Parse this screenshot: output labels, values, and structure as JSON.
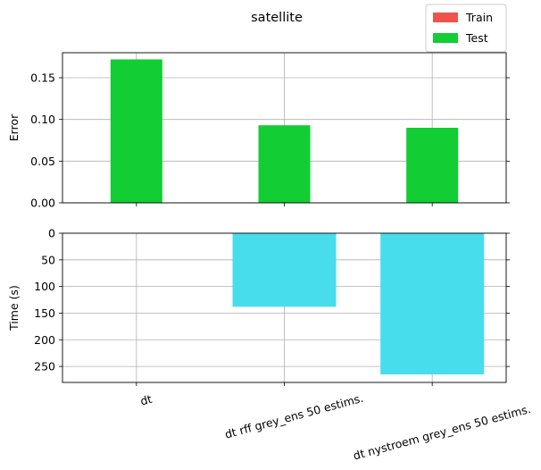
{
  "chart_data": {
    "title": "satellite",
    "categories": [
      "dt",
      "dt rff grey_ens 50 estims.",
      "dt nystroem grey_ens 50 estims."
    ],
    "legend": {
      "position": "top-right",
      "entries": [
        {
          "label": "Train",
          "color": "#f0534c"
        },
        {
          "label": "Test",
          "color": "#12cd34"
        }
      ]
    },
    "grid": true,
    "panels": [
      {
        "type": "bar",
        "ylabel": "Error",
        "ylim": [
          0,
          0.18
        ],
        "yticks": [
          0.0,
          0.05,
          0.1,
          0.15
        ],
        "ytick_labels": [
          "0.00",
          "0.05",
          "0.10",
          "0.15"
        ],
        "inverted": false,
        "series": [
          {
            "name": "Train",
            "color": "#f0534c",
            "values": [
              0,
              0,
              0
            ]
          },
          {
            "name": "Test",
            "color": "#12cd34",
            "values": [
              0.172,
              0.093,
              0.09
            ]
          }
        ]
      },
      {
        "type": "bar",
        "ylabel": "Time (s)",
        "ylim": [
          280,
          0
        ],
        "yticks": [
          0,
          50,
          100,
          150,
          200,
          250
        ],
        "ytick_labels": [
          "0",
          "50",
          "100",
          "150",
          "200",
          "250"
        ],
        "inverted": true,
        "series": [
          {
            "color": "#48dded",
            "values": [
              0,
              138,
              265
            ]
          }
        ]
      }
    ]
  }
}
